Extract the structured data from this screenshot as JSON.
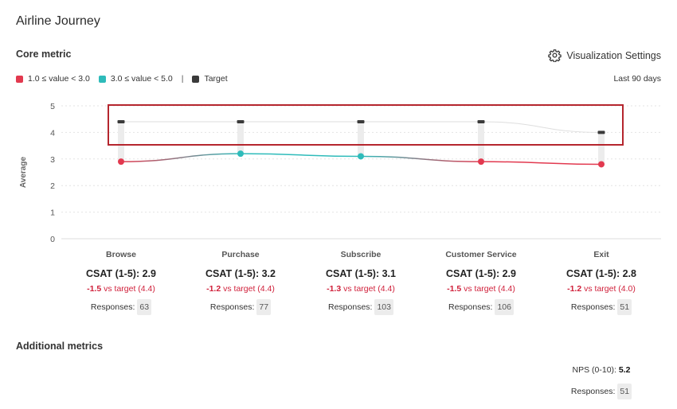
{
  "page": {
    "title": "Airline Journey"
  },
  "core_metric": {
    "title": "Core metric",
    "settings_label": "Visualization Settings",
    "period": "Last 90 days",
    "legend": [
      {
        "label": "1.0 ≤ value < 3.0",
        "color": "#e2394f"
      },
      {
        "label": "3.0 ≤ value < 5.0",
        "color": "#2ebbba"
      }
    ],
    "legend_separator": "|",
    "legend_target": {
      "label": "Target",
      "color": "#3a3a3a"
    }
  },
  "chart_data": {
    "type": "line",
    "ylabel": "Average",
    "xlabel": "",
    "ylim": [
      0,
      5
    ],
    "yticks": [
      0,
      1,
      2,
      3,
      4,
      5
    ],
    "grid": true,
    "categories": [
      "Browse",
      "Purchase",
      "Subscribe",
      "Customer Service",
      "Exit"
    ],
    "series": [
      {
        "values": [
          2.9,
          3.2,
          3.1,
          2.9,
          2.8
        ],
        "colors": [
          "#e2394f",
          "#2ebbba",
          "#2ebbba",
          "#e2394f",
          "#e2394f"
        ]
      }
    ],
    "target": [
      4.4,
      4.4,
      4.4,
      4.4,
      4.0
    ],
    "highlight_box_color": "#b5262e"
  },
  "stages": [
    {
      "name": "Browse",
      "metric": "CSAT (1-5): 2.9",
      "diff": "-1.5",
      "diff_text": " vs target (4.4)",
      "responses_label": "Responses:",
      "responses": "63"
    },
    {
      "name": "Purchase",
      "metric": "CSAT (1-5): 3.2",
      "diff": "-1.2",
      "diff_text": " vs target (4.4)",
      "responses_label": "Responses:",
      "responses": "77"
    },
    {
      "name": "Subscribe",
      "metric": "CSAT (1-5): 3.1",
      "diff": "-1.3",
      "diff_text": " vs target (4.4)",
      "responses_label": "Responses:",
      "responses": "103"
    },
    {
      "name": "Customer Service",
      "metric": "CSAT (1-5): 2.9",
      "diff": "-1.5",
      "diff_text": " vs target (4.4)",
      "responses_label": "Responses:",
      "responses": "106"
    },
    {
      "name": "Exit",
      "metric": "CSAT (1-5): 2.8",
      "diff": "-1.2",
      "diff_text": " vs target (4.0)",
      "responses_label": "Responses:",
      "responses": "51"
    }
  ],
  "additional_metrics": {
    "title": "Additional metrics",
    "nps_label": "NPS (0-10):",
    "nps_value": "5.2",
    "responses_label": "Responses:",
    "responses": "51"
  },
  "icons": {
    "settings": "gear-icon"
  }
}
